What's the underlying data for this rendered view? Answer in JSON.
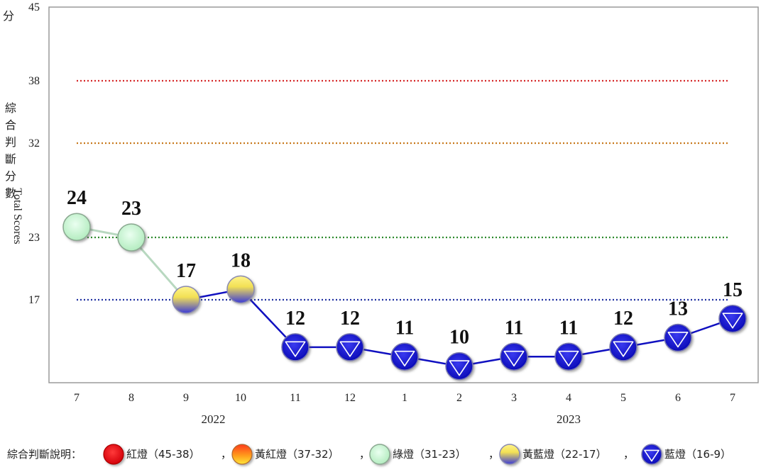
{
  "chart_data": {
    "type": "line",
    "categories": [
      "7",
      "8",
      "9",
      "10",
      "11",
      "12",
      "1",
      "2",
      "3",
      "4",
      "5",
      "6",
      "7"
    ],
    "years": [
      {
        "label": "2022",
        "span": [
          0,
          5
        ]
      },
      {
        "label": "2023",
        "span": [
          6,
          12
        ]
      }
    ],
    "values": [
      24,
      23,
      17,
      18,
      12,
      12,
      11,
      10,
      11,
      11,
      12,
      13,
      15
    ],
    "signals": [
      "green",
      "green",
      "yellow-blue",
      "yellow-blue",
      "blue",
      "blue",
      "blue",
      "blue",
      "blue",
      "blue",
      "blue",
      "blue",
      "blue"
    ],
    "ylim": [
      9,
      45
    ],
    "yticks": [
      17,
      23,
      32,
      38,
      45
    ],
    "ylabel_cjk": "綜合判斷分數",
    "ylabel_top": "分",
    "ylabel_en": "Total Scores",
    "thresholds": [
      {
        "value": 38,
        "color": "#d62728"
      },
      {
        "value": 32,
        "color": "#c87a1e"
      },
      {
        "value": 23,
        "color": "#2e8b2e"
      },
      {
        "value": 17,
        "color": "#1f2fa0"
      }
    ],
    "grid": false,
    "legend_position": "bottom"
  },
  "legend": {
    "title": "綜合判斷說明：",
    "items": [
      {
        "type": "red",
        "label": "紅燈（45-38）",
        "sep": "，"
      },
      {
        "type": "yellow-red",
        "label": "黃紅燈（37-32）",
        "sep": "，"
      },
      {
        "type": "green",
        "label": "綠燈（31-23）",
        "sep": "，"
      },
      {
        "type": "yellow-blue",
        "label": "黃藍燈（22-17）",
        "sep": "，"
      },
      {
        "type": "blue",
        "label": "藍燈（16-9）",
        "sep": ""
      }
    ]
  },
  "colors": {
    "line": "#1010c0",
    "line_green": "#b8d8c0",
    "green_fill": "#c8f5d0",
    "blue_fill": "#1a1ad6",
    "red_fill": "#e8101a"
  }
}
